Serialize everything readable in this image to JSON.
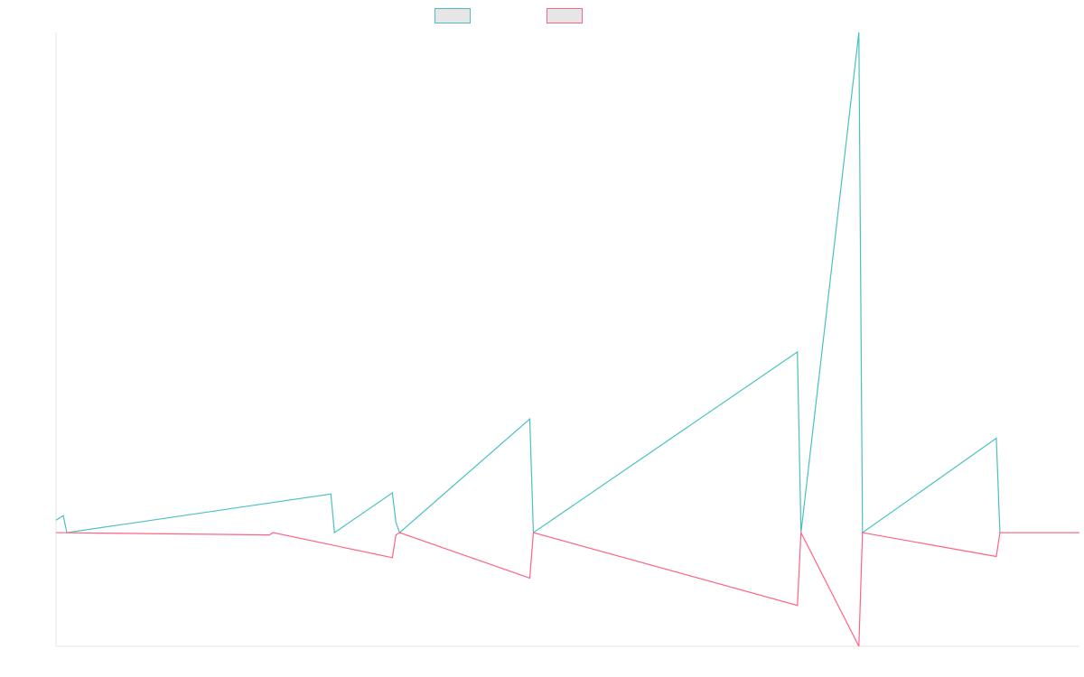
{
  "chart_data": {
    "type": "line",
    "title": "",
    "xlabel": "",
    "ylabel": "",
    "x_range": [
      0,
      283
    ],
    "ylim": [
      -100,
      440
    ],
    "grid": false,
    "legend_position": "top-center",
    "series": [
      {
        "color": "#4bc0c0",
        "fill": "#e6e6e6",
        "points": [
          [
            0,
            11
          ],
          [
            2,
            15
          ],
          [
            3,
            0
          ],
          [
            76,
            34
          ],
          [
            77,
            0
          ],
          [
            93,
            35
          ],
          [
            94,
            9
          ],
          [
            95,
            0
          ],
          [
            131,
            100
          ],
          [
            132,
            0
          ],
          [
            205,
            159
          ],
          [
            206,
            0
          ],
          [
            222,
            440
          ],
          [
            223,
            0
          ],
          [
            260,
            83
          ],
          [
            261,
            0
          ],
          [
            283,
            0
          ]
        ]
      },
      {
        "color": "#ff6384",
        "fill": "#e6e6e6",
        "points": [
          [
            0,
            0
          ],
          [
            59,
            -2
          ],
          [
            60,
            0
          ],
          [
            93,
            -22
          ],
          [
            94,
            -2
          ],
          [
            95,
            0
          ],
          [
            131,
            -40
          ],
          [
            132,
            0
          ],
          [
            205,
            -64
          ],
          [
            206,
            0
          ],
          [
            222,
            -100
          ],
          [
            223,
            0
          ],
          [
            260,
            -21
          ],
          [
            261,
            0
          ],
          [
            283,
            0
          ]
        ]
      }
    ]
  }
}
